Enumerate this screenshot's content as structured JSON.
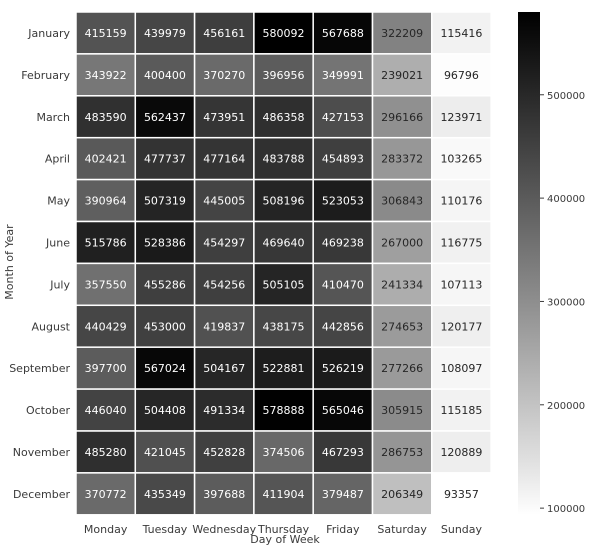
{
  "chart_data": {
    "type": "heatmap",
    "xlabel": "Day of Week",
    "ylabel": "Month of Year",
    "x_categories": [
      "Monday",
      "Tuesday",
      "Wednesday",
      "Thursday",
      "Friday",
      "Saturday",
      "Sunday"
    ],
    "y_categories": [
      "January",
      "February",
      "March",
      "April",
      "May",
      "June",
      "July",
      "August",
      "September",
      "October",
      "November",
      "December"
    ],
    "values": [
      [
        415159,
        439979,
        456161,
        580092,
        567688,
        322209,
        115416
      ],
      [
        343922,
        400400,
        370270,
        396956,
        349991,
        239021,
        96796
      ],
      [
        483590,
        562437,
        473951,
        486358,
        427153,
        296166,
        123971
      ],
      [
        402421,
        477737,
        477164,
        483788,
        454893,
        283372,
        103265
      ],
      [
        390964,
        507319,
        445005,
        508196,
        523053,
        306843,
        110176
      ],
      [
        515786,
        528386,
        454297,
        469640,
        469238,
        267000,
        116775
      ],
      [
        357550,
        455286,
        454256,
        505105,
        410470,
        241334,
        107113
      ],
      [
        440429,
        453000,
        419837,
        438175,
        442856,
        274653,
        120177
      ],
      [
        397700,
        567024,
        504167,
        522881,
        526219,
        277266,
        108097
      ],
      [
        446040,
        504408,
        491334,
        578888,
        565046,
        305915,
        115185
      ],
      [
        485280,
        421045,
        452828,
        374506,
        467293,
        286753,
        120889
      ],
      [
        370772,
        435349,
        397688,
        411904,
        379487,
        206349,
        93357
      ]
    ],
    "colorbar": {
      "min": 93357,
      "max": 580092,
      "ticks": [
        100000,
        200000,
        300000,
        400000,
        500000
      ],
      "tick_labels": [
        "100000",
        "200000",
        "300000",
        "400000",
        "500000"
      ],
      "colormap": "greys",
      "low_color": "#ffffff",
      "high_color": "#000000"
    },
    "annotations": true,
    "grid_color": "#ffffff"
  }
}
